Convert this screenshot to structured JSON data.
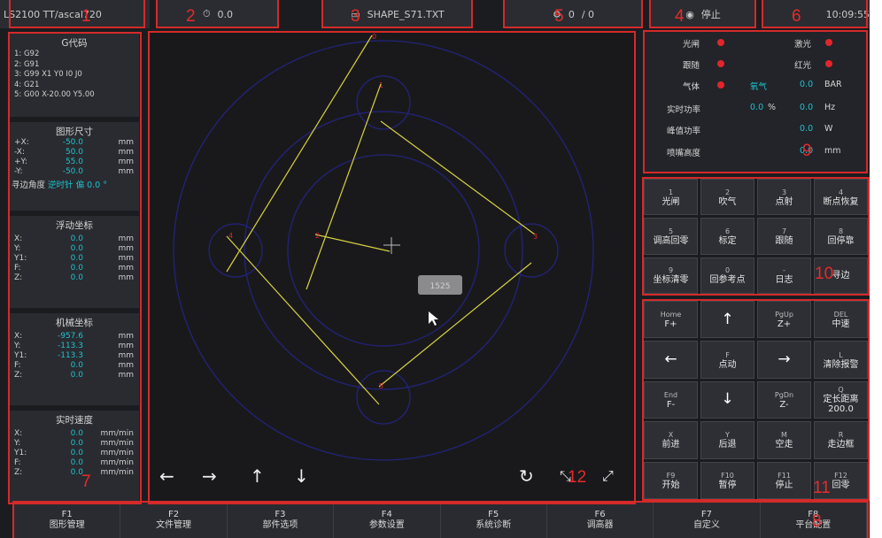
{
  "topbar": {
    "seg1": "LS2100   TT/ascal720",
    "seg2_icon": "clock-icon",
    "seg2_val": "0.0",
    "seg3_file": "SHAPE_S71.TXT",
    "seg4_a": "0",
    "seg4_b": "/ 0",
    "seg5_label": "停止",
    "seg6_time": "10:09:55"
  },
  "gcode": {
    "title": "G代码",
    "lines": [
      "1: G92",
      "2: G91",
      "3: G99 X1 Y0 I0 J0",
      "4: G21",
      "5: G00 X-20.00 Y5.00"
    ]
  },
  "shape_size": {
    "title": "图形尺寸",
    "rows": [
      {
        "k": "+X:",
        "v": "-50.0",
        "u": "mm"
      },
      {
        "k": "-X:",
        "v": "50.0",
        "u": "mm"
      },
      {
        "k": "+Y:",
        "v": "55.0",
        "u": "mm"
      },
      {
        "k": "-Y:",
        "v": "-50.0",
        "u": "mm"
      }
    ],
    "angle_label": "寻边角度",
    "angle_mode": "逆时针 偏",
    "angle_val": "0.0 °"
  },
  "float_coord": {
    "title": "浮动坐标",
    "rows": [
      {
        "k": "X:",
        "v": "0.0",
        "u": "mm"
      },
      {
        "k": "Y:",
        "v": "0.0",
        "u": "mm"
      },
      {
        "k": "Y1:",
        "v": "0.0",
        "u": "mm"
      },
      {
        "k": "F:",
        "v": "0.0",
        "u": "mm"
      },
      {
        "k": "Z:",
        "v": "0.0",
        "u": "mm"
      }
    ]
  },
  "machine_coord": {
    "title": "机械坐标",
    "rows": [
      {
        "k": "X:",
        "v": "-957.6",
        "u": "mm"
      },
      {
        "k": "Y:",
        "v": "-113.3",
        "u": "mm"
      },
      {
        "k": "Y1:",
        "v": "-113.3",
        "u": "mm"
      },
      {
        "k": "F:",
        "v": "0.0",
        "u": "mm"
      },
      {
        "k": "Z:",
        "v": "0.0",
        "u": "mm"
      }
    ]
  },
  "speed": {
    "title": "实时速度",
    "rows": [
      {
        "k": "X:",
        "v": "0.0",
        "u": "mm/min"
      },
      {
        "k": "Y:",
        "v": "0.0",
        "u": "mm/min"
      },
      {
        "k": "Y1:",
        "v": "0.0",
        "u": "mm/min"
      },
      {
        "k": "F:",
        "v": "0.0",
        "u": "mm/min"
      },
      {
        "k": "Z:",
        "v": "0.0",
        "u": "mm/min"
      }
    ]
  },
  "canvas": {
    "badge": "1525",
    "nav": [
      "←",
      "→",
      "↑",
      "↓"
    ],
    "refresh": "↻",
    "zoom_in": "⤡",
    "zoom_out": "⤢"
  },
  "status": {
    "light": "光闸",
    "laser": "激光",
    "follow": "跟随",
    "redlight": "红光",
    "gas": "气体",
    "gas_type": "氧气",
    "gas_val": "0.0",
    "gas_unit": "BAR",
    "power_label": "实时功率",
    "power_val": "0.0",
    "power_unit": "%",
    "freq_val": "0.0",
    "freq_unit": "Hz",
    "peak_label": "峰值功率",
    "peak_val": "0.0",
    "peak_unit": "W",
    "nozzle_label": "喷嘴高度",
    "nozzle_val": "0.0",
    "nozzle_unit": "mm",
    "indicator_color": "#e1262b"
  },
  "func_keys": [
    {
      "n": "1",
      "t": "光闸"
    },
    {
      "n": "2",
      "t": "吹气"
    },
    {
      "n": "3",
      "t": "点射"
    },
    {
      "n": "4",
      "t": "断点恢复"
    },
    {
      "n": "5",
      "t": "调高回零"
    },
    {
      "n": "6",
      "t": "标定"
    },
    {
      "n": "7",
      "t": "跟随"
    },
    {
      "n": "8",
      "t": "回停靠"
    },
    {
      "n": "9",
      "t": "坐标清零"
    },
    {
      "n": "0",
      "t": "回参考点"
    },
    {
      "n": "-",
      "t": "日志"
    },
    {
      "n": "",
      "t": "寻边"
    }
  ],
  "motion_keys": [
    {
      "n": "Home",
      "t": "F+"
    },
    {
      "n": "",
      "t": "↑",
      "arrow": true
    },
    {
      "n": "PgUp",
      "t": "Z+"
    },
    {
      "n": "DEL",
      "t": "中速"
    },
    {
      "n": "",
      "t": "←",
      "arrow": true
    },
    {
      "n": "F",
      "t": "点动"
    },
    {
      "n": "",
      "t": "→",
      "arrow": true
    },
    {
      "n": "L",
      "t": "清除报警"
    },
    {
      "n": "End",
      "t": "F-"
    },
    {
      "n": "",
      "t": "↓",
      "arrow": true
    },
    {
      "n": "PgDn",
      "t": "Z-"
    },
    {
      "n": "Q",
      "t": "定长距离",
      "x": "200.0"
    },
    {
      "n": "X",
      "t": "前进"
    },
    {
      "n": "Y",
      "t": "后退"
    },
    {
      "n": "M",
      "t": "空走"
    },
    {
      "n": "R",
      "t": "走边框"
    },
    {
      "n": "F9",
      "t": "开始"
    },
    {
      "n": "F10",
      "t": "暂停"
    },
    {
      "n": "F11",
      "t": "停止"
    },
    {
      "n": "F12",
      "t": "回零"
    }
  ],
  "bottom": [
    {
      "n": "F1",
      "t": "图形管理"
    },
    {
      "n": "F2",
      "t": "文件管理"
    },
    {
      "n": "F3",
      "t": "部件选项"
    },
    {
      "n": "F4",
      "t": "参数设置"
    },
    {
      "n": "F5",
      "t": "系统诊断"
    },
    {
      "n": "F6",
      "t": "调高器"
    },
    {
      "n": "F7",
      "t": "自定义"
    },
    {
      "n": "F8",
      "t": "平台配置"
    }
  ],
  "annotations": [
    "1",
    "2",
    "3",
    "4",
    "5",
    "6",
    "7",
    "8",
    "9",
    "10",
    "11",
    "12"
  ],
  "colors": {
    "annotation": "#d42a2a",
    "value_cyan": "#19c3d0",
    "shape_blue": "#23237a",
    "cut_line": "#d8d23f"
  }
}
